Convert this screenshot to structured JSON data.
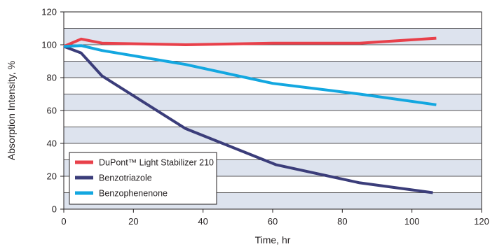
{
  "chart_data": {
    "type": "line",
    "xlabel": "Time, hr",
    "ylabel": "Absorption Intensity, %",
    "xlim": [
      0,
      120
    ],
    "ylim": [
      0,
      120
    ],
    "xticks": [
      0,
      20,
      40,
      60,
      80,
      100,
      120
    ],
    "yticks": [
      0,
      20,
      40,
      60,
      80,
      100,
      120
    ],
    "grid": "horizontal bands every 10",
    "legend_position": "bottom-left",
    "band_color": "#dde3ee",
    "series": [
      {
        "name": "DuPont™ Light Stabilizer 210",
        "color": "#e8404a",
        "x": [
          0,
          5,
          11,
          35,
          60,
          85,
          107
        ],
        "y": [
          99,
          103.5,
          101,
          100,
          101,
          101,
          104
        ]
      },
      {
        "name": "Benzotriazole",
        "color": "#3b3d7a",
        "x": [
          0,
          5,
          11,
          35,
          61,
          85,
          106
        ],
        "y": [
          99,
          95,
          81,
          49,
          27,
          16,
          10
        ]
      },
      {
        "name": "Benzophenenone",
        "color": "#13a7e0",
        "x": [
          0,
          5,
          11,
          35,
          60,
          85,
          107
        ],
        "y": [
          99,
          99.5,
          96.5,
          88,
          76.5,
          70,
          63.5
        ]
      }
    ]
  }
}
